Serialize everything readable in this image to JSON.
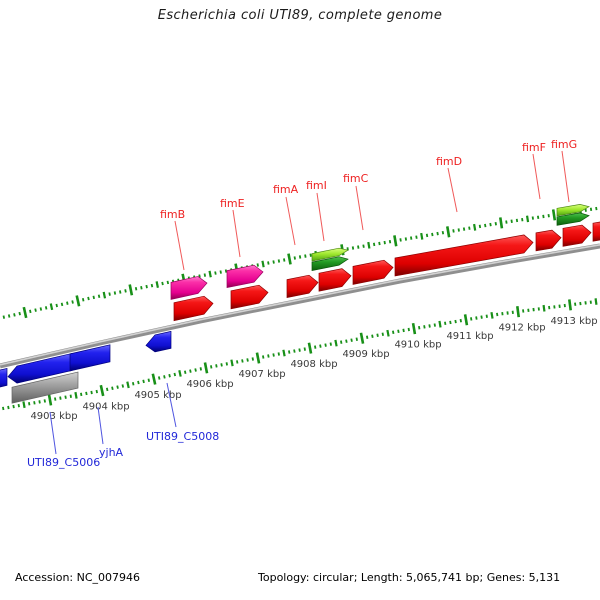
{
  "title": "Escherichia coli UTI89, complete genome",
  "footer": {
    "accession": "Accession: NC_007946",
    "summary": "Topology: circular; Length: 5,065,741 bp; Genes: 5,131"
  },
  "ruler": {
    "unit": "kbp",
    "tick_labels": [
      "4903 kbp",
      "4904 kbp",
      "4905 kbp",
      "4906 kbp",
      "4907 kbp",
      "4908 kbp",
      "4909 kbp",
      "4910 kbp",
      "4911 kbp",
      "4912 kbp",
      "4913 kbp"
    ]
  },
  "features": {
    "forward_labels": [
      "fimB",
      "fimE",
      "fimA",
      "fimI",
      "fimC",
      "fimD",
      "fimF",
      "fimG"
    ],
    "reverse_labels": [
      "UTI89_C5006",
      "yjhA",
      "UTI89_C5008"
    ]
  },
  "colors": {
    "forward_gene": "#ee0000",
    "recombinase_gene": "#f3189b",
    "green_feature_light": "#8ad62a",
    "green_feature_dark": "#1f8c1f",
    "reverse_gene": "#1515dd",
    "other_gene": "#9a9a9a",
    "ruler_tick": "#189018",
    "gene_label": "#ee2222",
    "reverse_label": "#2228d8",
    "ruler_label": "#3a3a3a",
    "backbone": "#8f8f8f"
  },
  "chart_data": {
    "type": "genome-feature-map",
    "sequence": "Escherichia coli UTI89, complete genome",
    "accession": "NC_007946",
    "topology": "circular",
    "length_bp": 5065741,
    "genes_count": 5131,
    "visible_region_kbp": [
      4901,
      4914
    ],
    "ruler_ticks_kbp": [
      4903,
      4904,
      4905,
      4906,
      4907,
      4908,
      4909,
      4910,
      4911,
      4912,
      4913
    ],
    "features": [
      {
        "name": "fimB",
        "strand": "+",
        "start_kbp": 4904.8,
        "end_kbp": 4905.5,
        "color": "red+magenta"
      },
      {
        "name": "fimE",
        "strand": "+",
        "start_kbp": 4905.9,
        "end_kbp": 4906.6,
        "color": "red+magenta"
      },
      {
        "name": "fimA",
        "strand": "+",
        "start_kbp": 4906.9,
        "end_kbp": 4907.5,
        "color": "red, green block above"
      },
      {
        "name": "fimI",
        "strand": "+",
        "start_kbp": 4907.6,
        "end_kbp": 4908.2,
        "color": "red"
      },
      {
        "name": "fimC",
        "strand": "+",
        "start_kbp": 4908.2,
        "end_kbp": 4909.0,
        "color": "red"
      },
      {
        "name": "fimD",
        "strand": "+",
        "start_kbp": 4909.0,
        "end_kbp": 4911.6,
        "color": "red"
      },
      {
        "name": "fimF",
        "strand": "+",
        "start_kbp": 4911.7,
        "end_kbp": 4912.1,
        "color": "red"
      },
      {
        "name": "fimG",
        "strand": "+",
        "start_kbp": 4912.2,
        "end_kbp": 4912.7,
        "color": "red, green block above"
      },
      {
        "name": "unlabeled (clipped right)",
        "strand": "+",
        "start_kbp": 4912.7,
        "end_kbp": 4913.0,
        "color": "red"
      },
      {
        "name": "UTI89_C5006",
        "strand": "-",
        "start_kbp": 4901.7,
        "end_kbp": 4903.0,
        "color": "gray"
      },
      {
        "name": "yjhA",
        "strand": "-",
        "start_kbp": 4901.7,
        "end_kbp": 4903.6,
        "color": "blue"
      },
      {
        "name": "UTI89_C5008",
        "strand": "-",
        "start_kbp": 4904.3,
        "end_kbp": 4904.7,
        "color": "blue"
      },
      {
        "name": "unlabeled (clipped left)",
        "strand": "-",
        "start_kbp": 4901.4,
        "end_kbp": 4901.7,
        "color": "blue"
      }
    ]
  }
}
